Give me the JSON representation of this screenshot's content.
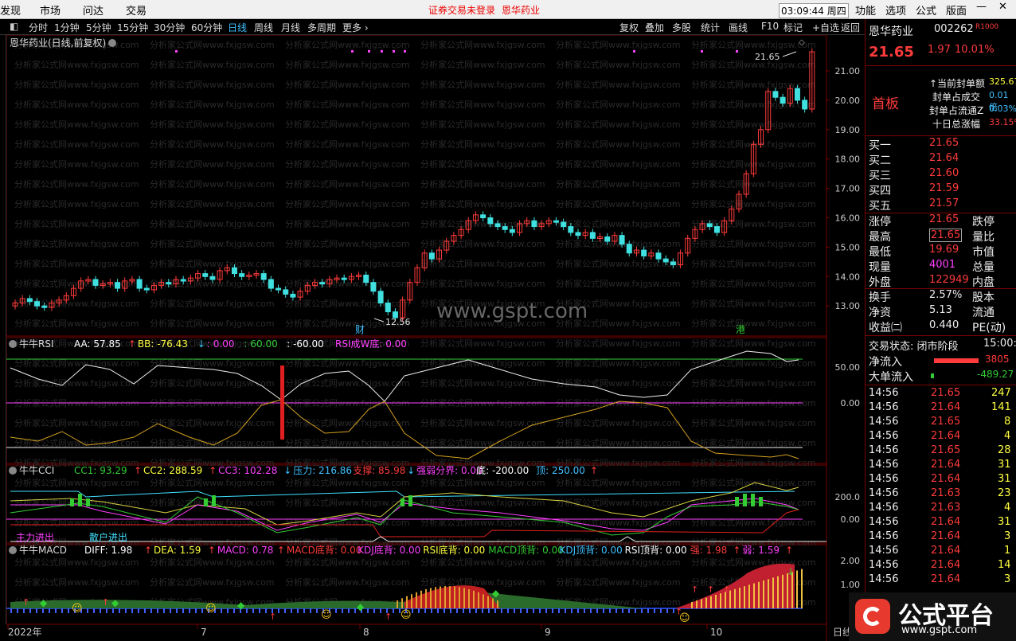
{
  "menubar": {
    "left": [
      "发现",
      "市场",
      "问达",
      "交易"
    ],
    "notice": "证券交易未登录",
    "stock": "恩华药业",
    "time": "03:09:44 周四",
    "right": [
      "功能",
      "选项",
      "公式",
      "版面"
    ]
  },
  "toolbar": {
    "periods": [
      "分时",
      "1分钟",
      "5分钟",
      "15分钟",
      "30分钟",
      "60分钟",
      "日线",
      "周线",
      "月线",
      "多周期",
      "更多"
    ],
    "active": "日线",
    "right": [
      "复权",
      "叠加",
      "多股",
      "统计",
      "画线",
      "F10",
      "标记",
      "+自选",
      "返回"
    ]
  },
  "main": {
    "title": "恩华药业(日线,前复权)",
    "high_label": "21.65",
    "low_label": "12.56",
    "mark_cai": "财",
    "mark_gang": "港",
    "watermark": "www.gspt.com",
    "wm_text": "分析家公式网www.fxjgsw.com"
  },
  "yaxis": {
    "main": [
      "21.00",
      "20.00",
      "19.00",
      "18.00",
      "17.00",
      "16.00",
      "15.00",
      "14.00",
      "13.00"
    ],
    "rsi": [
      "50.00",
      "0.00"
    ],
    "cci": [
      "200.0",
      "0.00"
    ],
    "macd": [
      "2.00",
      "1.00"
    ]
  },
  "xaxis": {
    "labels": [
      "2022年",
      "7",
      "8",
      "9",
      "10"
    ],
    "corner": "日线"
  },
  "rsi": {
    "name": "牛牛RSI",
    "items": [
      {
        "t": "AA: 57.85",
        "c": "#ffffff"
      },
      {
        "t": "↑",
        "c": "#ff3b3b"
      },
      {
        "t": "BB: -76.43",
        "c": "#ffff40"
      },
      {
        "t": "↓",
        "c": "#40c0ff"
      },
      {
        "t": ": 0.00",
        "c": "#ff40ff"
      },
      {
        "t": ": 60.00",
        "c": "#33cc33"
      },
      {
        "t": ": -60.00",
        "c": "#ffffff"
      },
      {
        "t": "RSI成W底: 0.00",
        "c": "#ff40ff"
      }
    ]
  },
  "cci": {
    "name": "牛牛CCI",
    "items": [
      {
        "t": "CC1: 93.29",
        "c": "#33cc33"
      },
      {
        "t": "↑",
        "c": "#ff3b3b"
      },
      {
        "t": "CC2: 288.59",
        "c": "#ffff40"
      },
      {
        "t": "↑",
        "c": "#ff3b3b"
      },
      {
        "t": "CC3: 102.28",
        "c": "#ff40ff"
      },
      {
        "t": "↓",
        "c": "#40c0ff"
      },
      {
        "t": "压力: 216.86",
        "c": "#40c0ff"
      },
      {
        "t": "支撑: 85.98",
        "c": "#ff3b3b"
      },
      {
        "t": "↓",
        "c": "#40c0ff"
      },
      {
        "t": "强弱分界: 0.00",
        "c": "#ff40ff"
      },
      {
        "t": "底: -200.00",
        "c": "#ffffff"
      },
      {
        "t": "顶: 250.00",
        "c": "#40c0ff"
      },
      {
        "t": "↑",
        "c": "#ff3b3b"
      }
    ],
    "label1": "主力进出",
    "label2": "散户进出"
  },
  "macd": {
    "name": "牛牛MACD",
    "items": [
      {
        "t": "DIFF: 1.98",
        "c": "#ffffff"
      },
      {
        "t": "↑",
        "c": "#ff3b3b"
      },
      {
        "t": "DEA: 1.59",
        "c": "#ffff40"
      },
      {
        "t": "↑",
        "c": "#ff3b3b"
      },
      {
        "t": "MACD: 0.78",
        "c": "#ff40ff"
      },
      {
        "t": "↑",
        "c": "#ff3b3b"
      },
      {
        "t": "MACD底背: 0.00",
        "c": "#ff3b3b"
      },
      {
        "t": "KDJ底背: 0.00",
        "c": "#ff40ff"
      },
      {
        "t": "RSI底背: 0.00",
        "c": "#ffff40"
      },
      {
        "t": "MACD顶背: 0.00",
        "c": "#33cc33"
      },
      {
        "t": "KDJ顶背: 0.00",
        "c": "#40c0ff"
      },
      {
        "t": "RSI顶背: 0.00",
        "c": "#ffffff"
      },
      {
        "t": "强: 1.98",
        "c": "#ff3b3b"
      },
      {
        "t": "↑",
        "c": "#ff3b3b"
      },
      {
        "t": "弱: 1.59",
        "c": "#ff40ff"
      },
      {
        "t": "↑",
        "c": "#ff3b3b"
      }
    ]
  },
  "side": {
    "name": "恩华药业",
    "code": "002262",
    "tag": "R1000",
    "price": "21.65",
    "change": "1.97",
    "pct": "10.01%",
    "status": "首板",
    "seal": [
      {
        "k": "↑当前封单额",
        "v": "325.67"
      },
      {
        "k": "封单占成交",
        "v": "0.01倍"
      },
      {
        "k": "封单占流通Z",
        "v": "0.03%"
      },
      {
        "k": "十日总涨幅",
        "v": "33.15%"
      }
    ],
    "bids": [
      {
        "k": "买一",
        "v": "21.65"
      },
      {
        "k": "买二",
        "v": "21.64"
      },
      {
        "k": "买三",
        "v": "21.60"
      },
      {
        "k": "买四",
        "v": "21.59"
      },
      {
        "k": "买五",
        "v": "21.57"
      }
    ],
    "stats": [
      {
        "k": "涨停",
        "v": "21.65",
        "k2": "跌停"
      },
      {
        "k": "最高",
        "v": "21.65",
        "k2": "量比"
      },
      {
        "k": "最低",
        "v": "19.69",
        "k2": "市值"
      },
      {
        "k": "现量",
        "v": "4001",
        "k2": "总量"
      },
      {
        "k": "外盘",
        "v": "122949",
        "k2": "内盘"
      }
    ],
    "stats2": [
      {
        "k": "换手",
        "v": "2.57%",
        "k2": "股本"
      },
      {
        "k": "净资",
        "v": "5.13",
        "k2": "流通"
      },
      {
        "k": "收益㈡",
        "v": "0.440",
        "k2": "PE(动)"
      }
    ],
    "trade_state": "交易状态: 闭市阶段",
    "trade_time": "15:00:",
    "flow": [
      {
        "k": "净流入",
        "v": "3805"
      },
      {
        "k": "大单流入",
        "v": "-489.27"
      }
    ],
    "ticks": [
      {
        "t": "14:56",
        "p": "21.65",
        "v": "247"
      },
      {
        "t": "14:56",
        "p": "21.64",
        "v": "141"
      },
      {
        "t": "14:56",
        "p": "21.65",
        "v": "8"
      },
      {
        "t": "14:56",
        "p": "21.64",
        "v": "4"
      },
      {
        "t": "14:56",
        "p": "21.65",
        "v": "28"
      },
      {
        "t": "14:56",
        "p": "21.64",
        "v": "31"
      },
      {
        "t": "14:56",
        "p": "21.64",
        "v": "31"
      },
      {
        "t": "14:56",
        "p": "21.63",
        "v": "23"
      },
      {
        "t": "14:56",
        "p": "21.63",
        "v": "4"
      },
      {
        "t": "14:56",
        "p": "21.64",
        "v": "31"
      },
      {
        "t": "14:56",
        "p": "21.64",
        "v": "3"
      },
      {
        "t": "14:56",
        "p": "21.64",
        "v": "1"
      },
      {
        "t": "14:56",
        "p": "21.64",
        "v": "14"
      },
      {
        "t": "14:56",
        "p": "21.64",
        "v": "3"
      }
    ]
  },
  "logo": {
    "text": "公式平台",
    "sub": "www.gspt.com"
  }
}
